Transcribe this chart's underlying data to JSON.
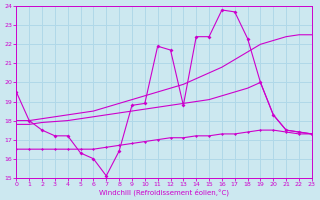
{
  "xlabel": "Windchill (Refroidissement éolien,°C)",
  "bg_color": "#cce8f0",
  "line_color": "#cc00cc",
  "grid_color": "#b0d8e8",
  "xlim": [
    0,
    23
  ],
  "ylim": [
    15,
    24
  ],
  "xticks": [
    0,
    1,
    2,
    3,
    4,
    5,
    6,
    7,
    8,
    9,
    10,
    11,
    12,
    13,
    14,
    15,
    16,
    17,
    18,
    19,
    20,
    21,
    22,
    23
  ],
  "yticks": [
    15,
    16,
    17,
    18,
    19,
    20,
    21,
    22,
    23,
    24
  ],
  "lines": [
    {
      "x": [
        0,
        1,
        2,
        3,
        4,
        5,
        6,
        7,
        8,
        9,
        10,
        11,
        12,
        13,
        14,
        15,
        16,
        17,
        18,
        19,
        20,
        21,
        22,
        23
      ],
      "y": [
        19.5,
        18.0,
        17.5,
        17.2,
        17.2,
        16.3,
        16.0,
        15.1,
        16.4,
        18.8,
        18.9,
        21.9,
        21.7,
        18.8,
        22.4,
        22.4,
        23.8,
        23.7,
        22.3,
        20.0,
        18.3,
        17.5,
        17.4,
        17.3
      ]
    },
    {
      "x": [
        0,
        1,
        2,
        3,
        4,
        5,
        6,
        7,
        8,
        9,
        10,
        11,
        12,
        13,
        14,
        15,
        16,
        17,
        18,
        19,
        20,
        21,
        22,
        23
      ],
      "y": [
        18.0,
        18.0,
        18.1,
        18.2,
        18.3,
        18.4,
        18.5,
        18.7,
        18.9,
        19.1,
        19.3,
        19.5,
        19.7,
        19.9,
        20.2,
        20.5,
        20.8,
        21.2,
        21.6,
        22.0,
        22.2,
        22.4,
        22.5,
        22.5
      ]
    },
    {
      "x": [
        0,
        1,
        2,
        3,
        4,
        5,
        6,
        7,
        8,
        9,
        10,
        11,
        12,
        13,
        14,
        15,
        16,
        17,
        18,
        19,
        20,
        21,
        22,
        23
      ],
      "y": [
        17.8,
        17.8,
        17.9,
        17.95,
        18.0,
        18.1,
        18.2,
        18.3,
        18.4,
        18.5,
        18.6,
        18.7,
        18.8,
        18.9,
        19.0,
        19.1,
        19.3,
        19.5,
        19.7,
        20.0,
        18.3,
        17.5,
        17.4,
        17.3
      ]
    },
    {
      "x": [
        0,
        1,
        2,
        3,
        4,
        5,
        6,
        7,
        8,
        9,
        10,
        11,
        12,
        13,
        14,
        15,
        16,
        17,
        18,
        19,
        20,
        21,
        22,
        23
      ],
      "y": [
        16.5,
        16.5,
        16.5,
        16.5,
        16.5,
        16.5,
        16.5,
        16.6,
        16.7,
        16.8,
        16.9,
        17.0,
        17.1,
        17.1,
        17.2,
        17.2,
        17.3,
        17.3,
        17.4,
        17.5,
        17.5,
        17.4,
        17.3,
        17.3
      ]
    }
  ]
}
